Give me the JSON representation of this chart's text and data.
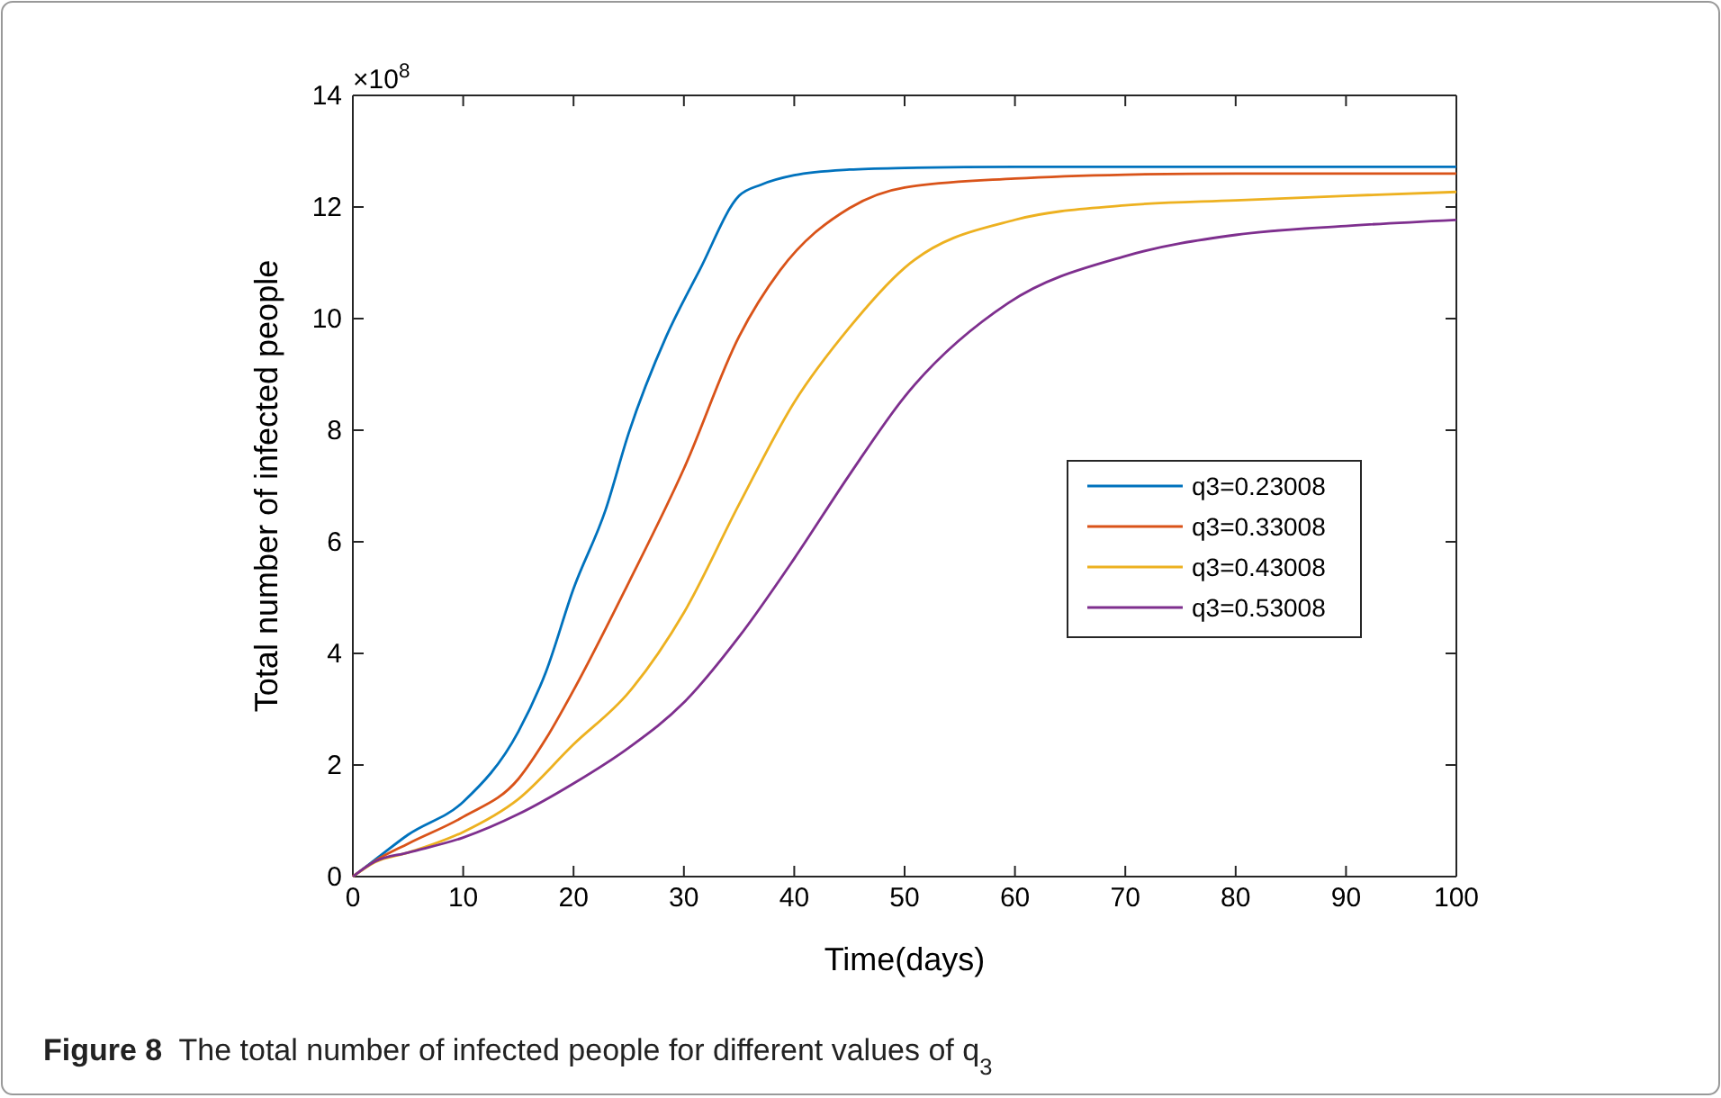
{
  "chart_data": {
    "type": "line",
    "xlabel": "Time(days)",
    "ylabel": "Total number of infected people",
    "annotations": [
      "×10$^{8}$",
      "Figure 8  The total number of infected people for different values of q$_{3}$"
    ],
    "xlim": [
      0,
      100
    ],
    "ylim": [
      0,
      14
    ],
    "xticks": [
      0,
      10,
      20,
      30,
      40,
      50,
      60,
      70,
      80,
      90,
      100
    ],
    "yticks": [
      0,
      2,
      4,
      6,
      8,
      10,
      12,
      14
    ],
    "legend": "right",
    "grid": false,
    "series": [
      {
        "name": "q3=0.23008",
        "color": "#0072bd",
        "x": [
          0,
          2,
          5,
          10,
          15,
          17.5,
          20,
          22.9,
          25,
          28.4,
          31.4,
          35,
          37,
          40,
          45,
          50,
          60,
          80,
          100
        ],
        "values": [
          0,
          0.3,
          0.75,
          1.34,
          2.6,
          3.67,
          5.16,
          6.57,
          7.95,
          9.68,
          10.86,
          12.2,
          12.4,
          12.57,
          12.67,
          12.7,
          12.72,
          12.72,
          12.72
        ]
      },
      {
        "name": "q3=0.33008",
        "color": "#d95319",
        "x": [
          0,
          2,
          5,
          10,
          15,
          17.5,
          20,
          25,
          30,
          35,
          38.7,
          45,
          50,
          60,
          70,
          80,
          100
        ],
        "values": [
          0,
          0.28,
          0.59,
          1.07,
          1.75,
          2.47,
          3.34,
          5.27,
          7.31,
          9.68,
          10.86,
          11.98,
          12.35,
          12.51,
          12.58,
          12.6,
          12.6
        ]
      },
      {
        "name": "q3=0.43008",
        "color": "#edb120",
        "x": [
          0,
          2,
          5,
          10,
          15,
          20,
          25,
          30,
          35,
          40,
          45,
          50,
          60,
          70,
          80,
          90,
          100
        ],
        "values": [
          0,
          0.26,
          0.43,
          0.8,
          1.39,
          2.37,
          3.3,
          4.73,
          6.67,
          8.5,
          9.84,
          10.91,
          11.77,
          12.03,
          12.12,
          12.2,
          12.27
        ]
      },
      {
        "name": "q3=0.53008",
        "color": "#7e2f8e",
        "x": [
          0,
          2,
          5,
          10,
          15,
          20,
          25,
          30,
          35,
          40,
          45,
          50,
          59.4,
          70,
          80,
          90,
          100
        ],
        "values": [
          0,
          0.27,
          0.43,
          0.7,
          1.12,
          1.67,
          2.31,
          3.12,
          4.3,
          5.7,
          7.2,
          8.6,
          10.28,
          11.12,
          11.5,
          11.66,
          11.77
        ]
      }
    ]
  }
}
